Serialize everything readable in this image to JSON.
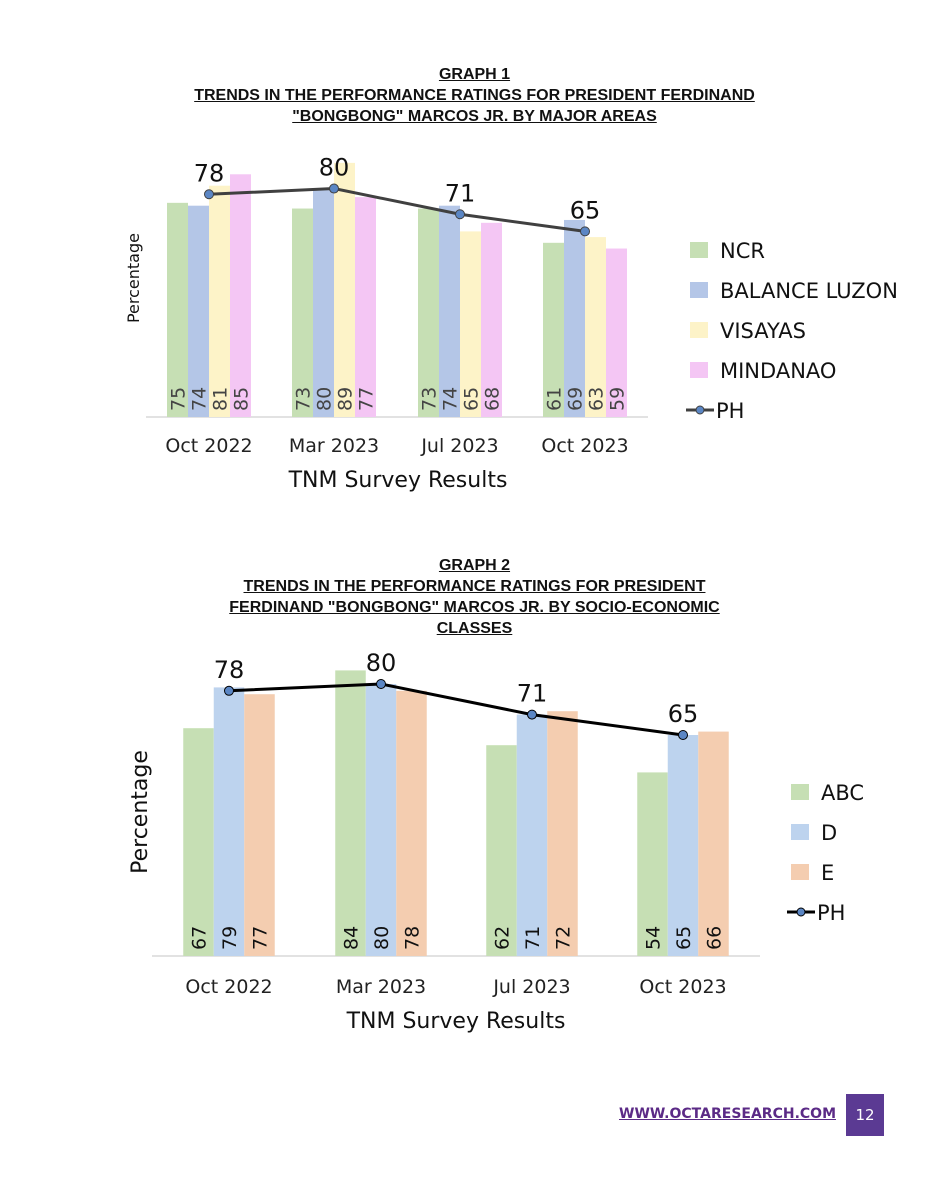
{
  "chart_data": [
    {
      "type": "bar",
      "title_lines": [
        "GRAPH 1",
        "TRENDS IN THE PERFORMANCE RATINGS FOR PRESIDENT FERDINAND",
        "\"BONGBONG\" MARCOS JR.  BY MAJOR AREAS"
      ],
      "xlabel": "TNM Survey Results",
      "ylabel": "Percentage",
      "categories": [
        "Oct 2022",
        "Mar 2023",
        "Jul 2023",
        "Oct 2023"
      ],
      "series": [
        {
          "name": "NCR",
          "color": "#c6dfb4",
          "values": [
            75,
            73,
            73,
            61
          ]
        },
        {
          "name": "BALANCE LUZON",
          "color": "#b4c6e7",
          "values": [
            74,
            80,
            74,
            69
          ]
        },
        {
          "name": "VISAYAS",
          "color": "#fdf3c8",
          "values": [
            81,
            89,
            65,
            63
          ]
        },
        {
          "name": "MINDANAO",
          "color": "#f4c6f4",
          "values": [
            85,
            77,
            68,
            59
          ]
        }
      ],
      "line": {
        "name": "PH",
        "values": [
          78,
          80,
          71,
          65
        ],
        "labels": [
          "78",
          "80",
          "71",
          "65"
        ],
        "color": "#404040",
        "marker": "#5b86c4"
      },
      "ylim": [
        0,
        90
      ],
      "legend": "right",
      "grid": false
    },
    {
      "type": "bar",
      "title_lines": [
        "GRAPH 2",
        "TRENDS IN THE PERFORMANCE RATINGS FOR PRESIDENT",
        "FERDINAND \"BONGBONG\" MARCOS JR.  BY SOCIO-ECONOMIC",
        "CLASSES"
      ],
      "xlabel": "TNM Survey Results",
      "ylabel": "Percentage",
      "categories": [
        "Oct 2022",
        "Mar 2023",
        "Jul 2023",
        "Oct 2023"
      ],
      "series": [
        {
          "name": "ABC",
          "color": "#c6dfb4",
          "values": [
            67,
            84,
            62,
            54
          ]
        },
        {
          "name": "D",
          "color": "#bdd3ee",
          "values": [
            79,
            80,
            71,
            65
          ]
        },
        {
          "name": "E",
          "color": "#f4cdb0",
          "values": [
            77,
            78,
            72,
            66
          ]
        }
      ],
      "line": {
        "name": "PH",
        "values": [
          78,
          80,
          71,
          65
        ],
        "labels": [
          "78",
          "80",
          "71",
          "65"
        ],
        "color": "#000000",
        "marker": "#5b86c4"
      },
      "ylim": [
        0,
        85
      ],
      "legend": "right",
      "grid": false
    }
  ],
  "footer": {
    "website": "WWW.OCTARESEARCH.COM",
    "page_number": "12",
    "accent_color": "#5b3a93"
  }
}
